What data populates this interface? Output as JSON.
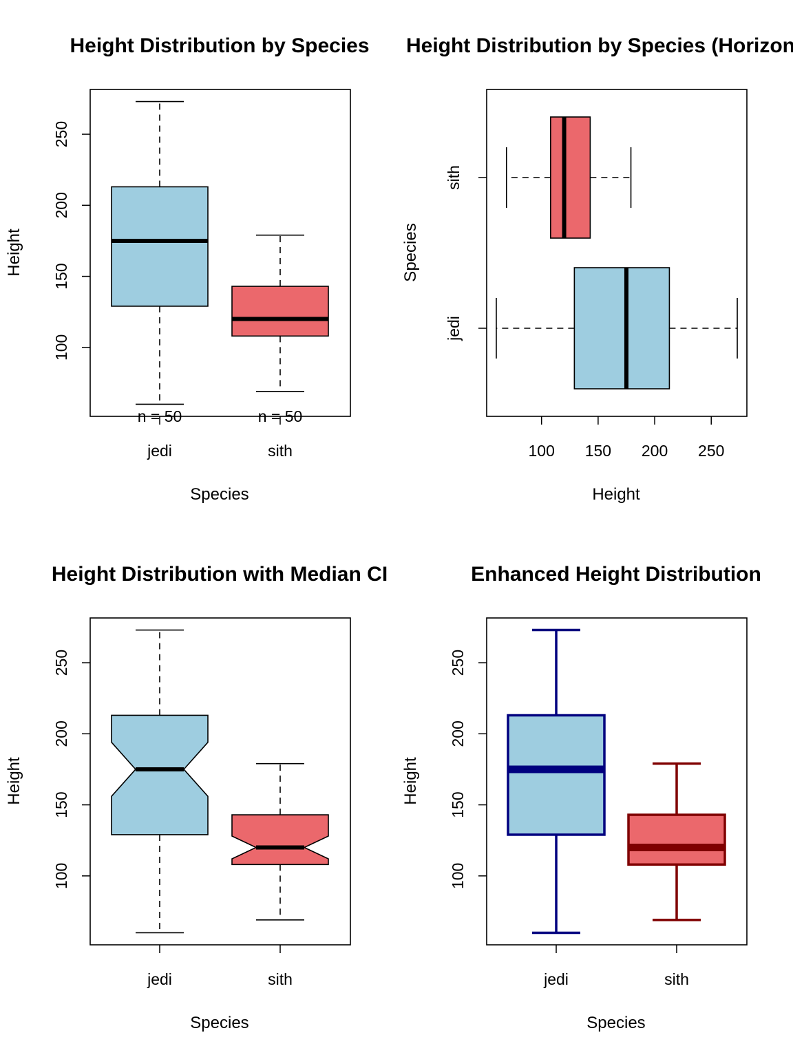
{
  "colors": {
    "jedi_fill": "#9ECDE0",
    "sith_fill": "#EB686C",
    "jedi_border_enhanced": "#00007F",
    "sith_border_enhanced": "#7F0000",
    "axis": "#000000"
  },
  "chart_data": [
    {
      "type": "boxplot",
      "title": "Height Distribution by Species",
      "xlabel": "Species",
      "ylabel": "Height",
      "orientation": "vertical",
      "notch": false,
      "categories": [
        "jedi",
        "sith"
      ],
      "series": [
        {
          "name": "jedi",
          "min": 60,
          "q1": 129,
          "median": 175,
          "q3": 213,
          "max": 273,
          "fill": "#9ECDE0"
        },
        {
          "name": "sith",
          "min": 69,
          "q1": 108,
          "median": 120,
          "q3": 143,
          "max": 179,
          "fill": "#EB686C"
        }
      ],
      "counts": [
        "n = 50",
        "n = 50"
      ],
      "value_ticks": [
        100,
        150,
        200,
        250
      ],
      "value_range": [
        51.5,
        281.5
      ],
      "grid": false
    },
    {
      "type": "boxplot",
      "title": "Height Distribution by Species (Horizontal)",
      "xlabel": "Height",
      "ylabel": "Species",
      "orientation": "horizontal",
      "notch": false,
      "categories": [
        "jedi",
        "sith"
      ],
      "series": [
        {
          "name": "jedi",
          "min": 60,
          "q1": 129,
          "median": 175,
          "q3": 213,
          "max": 273,
          "fill": "#9ECDE0"
        },
        {
          "name": "sith",
          "min": 69,
          "q1": 108,
          "median": 120,
          "q3": 143,
          "max": 179,
          "fill": "#EB686C"
        }
      ],
      "value_ticks": [
        100,
        150,
        200,
        250
      ],
      "value_range": [
        51.5,
        281.5
      ],
      "grid": false
    },
    {
      "type": "boxplot",
      "title": "Height Distribution with Median CI",
      "xlabel": "Species",
      "ylabel": "Height",
      "orientation": "vertical",
      "notch": true,
      "categories": [
        "jedi",
        "sith"
      ],
      "series": [
        {
          "name": "jedi",
          "min": 60,
          "q1": 129,
          "median": 175,
          "q3": 213,
          "max": 273,
          "notch_low": 156,
          "notch_high": 194,
          "fill": "#9ECDE0"
        },
        {
          "name": "sith",
          "min": 69,
          "q1": 108,
          "median": 120,
          "q3": 143,
          "max": 179,
          "notch_low": 112,
          "notch_high": 128,
          "fill": "#EB686C"
        }
      ],
      "value_ticks": [
        100,
        150,
        200,
        250
      ],
      "value_range": [
        51.5,
        281.5
      ],
      "grid": false
    },
    {
      "type": "boxplot",
      "title": "Enhanced Height Distribution",
      "xlabel": "Species",
      "ylabel": "Height",
      "orientation": "vertical",
      "notch": false,
      "enhanced": true,
      "categories": [
        "jedi",
        "sith"
      ],
      "series": [
        {
          "name": "jedi",
          "min": 60,
          "q1": 129,
          "median": 175,
          "q3": 213,
          "max": 273,
          "fill": "#9ECDE0",
          "border": "#00007F"
        },
        {
          "name": "sith",
          "min": 69,
          "q1": 108,
          "median": 120,
          "q3": 143,
          "max": 179,
          "fill": "#EB686C",
          "border": "#7F0000"
        }
      ],
      "value_ticks": [
        100,
        150,
        200,
        250
      ],
      "value_range": [
        51.5,
        281.5
      ],
      "grid": false
    }
  ]
}
